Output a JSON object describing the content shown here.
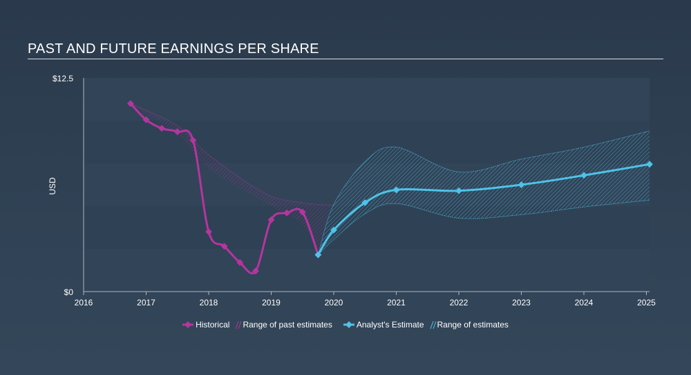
{
  "title": "PAST AND FUTURE EARNINGS PER SHARE",
  "colors": {
    "historical": "#b5359f",
    "estimate": "#4fc3e8",
    "grid_band": "#334559",
    "text": "#ffffff"
  },
  "legend": {
    "historical": "Historical",
    "past_range": "Range of past estimates",
    "estimate": "Analyst's Estimate",
    "future_range": "Range of estimates"
  },
  "chart_data": {
    "type": "line",
    "ylabel": "USD",
    "xlim": [
      2016,
      2025.05
    ],
    "ylim": [
      0,
      12.5
    ],
    "y_tick_labels": [
      "$0",
      "$12.5"
    ],
    "x_ticks": [
      "2016",
      "2017",
      "2018",
      "2019",
      "2020",
      "2021",
      "2022",
      "2023",
      "2024",
      "2025"
    ],
    "grid": false,
    "legend_position": "bottom",
    "series": [
      {
        "name": "Historical",
        "points": [
          [
            2016.75,
            11.0
          ],
          [
            2017.0,
            10.05
          ],
          [
            2017.25,
            9.55
          ],
          [
            2017.5,
            9.35
          ],
          [
            2017.75,
            8.85
          ],
          [
            2018.0,
            3.5
          ],
          [
            2018.25,
            2.65
          ],
          [
            2018.5,
            1.7
          ],
          [
            2018.75,
            1.2
          ],
          [
            2019.0,
            4.2
          ],
          [
            2019.25,
            4.6
          ],
          [
            2019.5,
            4.65
          ],
          [
            2019.75,
            2.15
          ]
        ]
      },
      {
        "name": "Range of past estimates",
        "upper": [
          [
            2016.75,
            11.0
          ],
          [
            2017.5,
            9.7
          ],
          [
            2018.0,
            8.0
          ],
          [
            2018.9,
            5.75
          ],
          [
            2019.5,
            5.2
          ],
          [
            2020.0,
            5.05
          ]
        ],
        "lower": [
          [
            2016.75,
            11.0
          ],
          [
            2017.5,
            9.2
          ],
          [
            2018.0,
            7.2
          ],
          [
            2018.9,
            5.2
          ],
          [
            2019.5,
            3.9
          ],
          [
            2019.75,
            2.15
          ]
        ]
      },
      {
        "name": "Analyst's Estimate",
        "points": [
          [
            2019.75,
            2.15
          ],
          [
            2020.0,
            3.6
          ],
          [
            2020.5,
            5.2
          ],
          [
            2021.0,
            5.95
          ],
          [
            2022.0,
            5.9
          ],
          [
            2023.0,
            6.25
          ],
          [
            2024.0,
            6.8
          ],
          [
            2025.05,
            7.45
          ]
        ]
      },
      {
        "name": "Range of estimates",
        "upper": [
          [
            2019.75,
            2.15
          ],
          [
            2020.0,
            5.1
          ],
          [
            2020.5,
            7.6
          ],
          [
            2021.0,
            8.45
          ],
          [
            2022.0,
            7.0
          ],
          [
            2023.0,
            7.75
          ],
          [
            2024.0,
            8.45
          ],
          [
            2025.05,
            9.4
          ]
        ],
        "lower": [
          [
            2019.75,
            2.15
          ],
          [
            2020.0,
            3.05
          ],
          [
            2020.5,
            4.55
          ],
          [
            2021.0,
            5.15
          ],
          [
            2022.0,
            4.3
          ],
          [
            2023.0,
            4.5
          ],
          [
            2024.0,
            4.95
          ],
          [
            2025.05,
            5.35
          ]
        ]
      }
    ]
  }
}
